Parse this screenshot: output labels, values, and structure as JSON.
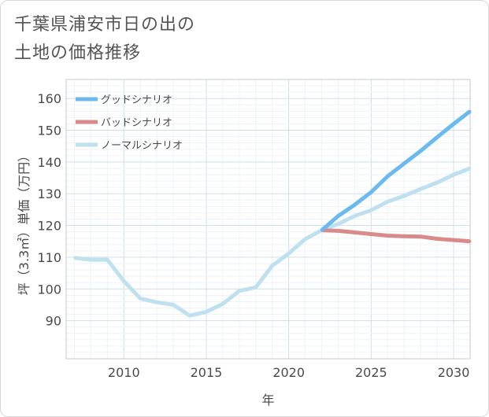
{
  "title_lines": [
    "千葉県浦安市日の出の",
    "土地の価格推移"
  ],
  "chart_data": {
    "type": "line",
    "title": "千葉県浦安市日の出の土地の価格推移",
    "xlabel": "年",
    "ylabel": "坪（3.3㎡）単価（万円）",
    "xlim": [
      2006.5,
      2031
    ],
    "ylim": [
      78,
      166
    ],
    "x_ticks": [
      2010,
      2015,
      2020,
      2025,
      2030
    ],
    "y_ticks": [
      90,
      100,
      110,
      120,
      130,
      140,
      150,
      160
    ],
    "grid": true,
    "legend_position": "top-left",
    "series": [
      {
        "name": "グッドシナリオ",
        "color": "#6bb9ee",
        "x": [
          2022,
          2023,
          2024,
          2025,
          2026,
          2027,
          2028,
          2029,
          2030,
          2031
        ],
        "values": [
          118.5,
          123,
          126.5,
          130.5,
          135.5,
          139.5,
          143.5,
          147.8,
          152,
          156
        ]
      },
      {
        "name": "バッドシナリオ",
        "color": "#d98b8b",
        "x": [
          2022,
          2023,
          2024,
          2025,
          2026,
          2027,
          2028,
          2029,
          2030,
          2031
        ],
        "values": [
          118.5,
          118.3,
          117.8,
          117.3,
          116.8,
          116.6,
          116.5,
          115.8,
          115.4,
          115
        ]
      },
      {
        "name": "ノーマルシナリオ",
        "color": "#bfe0ee",
        "x": [
          2007,
          2008,
          2009,
          2010,
          2011,
          2012,
          2013,
          2014,
          2015,
          2016,
          2017,
          2018,
          2019,
          2020,
          2021,
          2022,
          2023,
          2024,
          2025,
          2026,
          2027,
          2028,
          2029,
          2030,
          2031
        ],
        "values": [
          109.8,
          109.2,
          109.2,
          102.5,
          97,
          95.8,
          95,
          91.6,
          92.8,
          95.3,
          99.4,
          100.5,
          107.3,
          111.2,
          115.7,
          118.5,
          120.5,
          123,
          124.8,
          127.5,
          129.3,
          131.5,
          133.5,
          136,
          138
        ]
      }
    ]
  }
}
